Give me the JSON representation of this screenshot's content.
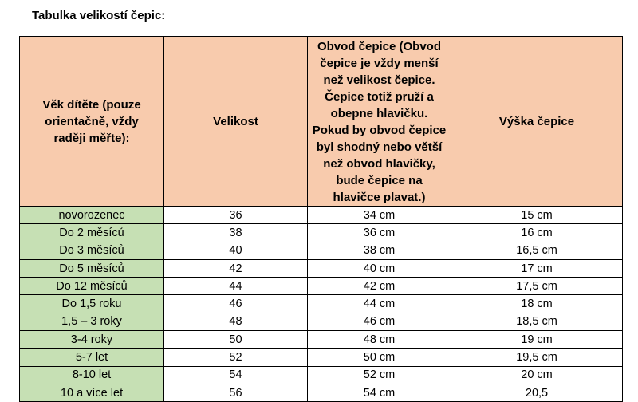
{
  "title": "Tabulka velikostí čepic:",
  "headers": {
    "age": "Věk dítěte (pouze orientačně, vždy raději měřte):",
    "size": "Velikost",
    "circumference_bold": "Obvod čepice",
    "circumference_note": " (Obvod čepice je vždy menší než velikost čepice. Čepice totiž pruží a obepne hlavičku. Pokud by obvod čepice byl shodný nebo větší než obvod hlavičky, bude čepice na hlavičce plavat.)",
    "height": "Výška čepice"
  },
  "rows": [
    {
      "age": "novorozenec",
      "size": "36",
      "circ": "34 cm",
      "height": "15 cm"
    },
    {
      "age": "Do 2 měsíců",
      "size": "38",
      "circ": "36 cm",
      "height": "16 cm"
    },
    {
      "age": "Do 3 měsíců",
      "size": "40",
      "circ": "38 cm",
      "height": "16,5 cm"
    },
    {
      "age": "Do 5 měsíců",
      "size": "42",
      "circ": "40 cm",
      "height": "17 cm"
    },
    {
      "age": "Do 12 měsíců",
      "size": "44",
      "circ": "42 cm",
      "height": "17,5 cm"
    },
    {
      "age": "Do 1,5 roku",
      "size": "46",
      "circ": "44 cm",
      "height": "18 cm"
    },
    {
      "age": "1,5 – 3 roky",
      "size": "48",
      "circ": "46 cm",
      "height": "18,5 cm"
    },
    {
      "age": "3-4 roky",
      "size": "50",
      "circ": "48 cm",
      "height": "19 cm"
    },
    {
      "age": "5-7 let",
      "size": "52",
      "circ": "50 cm",
      "height": "19,5 cm"
    },
    {
      "age": "8-10 let",
      "size": "54",
      "circ": "52 cm",
      "height": "20 cm"
    },
    {
      "age": "10 a více let",
      "size": "56",
      "circ": "54 cm",
      "height": "20,5"
    }
  ],
  "colors": {
    "header": "#f8cbad",
    "age_column": "#c6e0b4"
  }
}
